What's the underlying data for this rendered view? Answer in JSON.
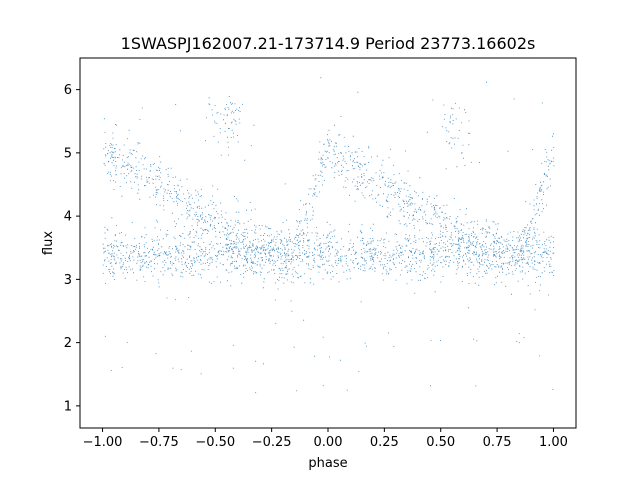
{
  "chart_data": {
    "type": "scatter",
    "title": "1SWASPJ162007.21-173714.9 Period 23773.16602s",
    "xlabel": "phase",
    "ylabel": "flux",
    "xlim": [
      -1.1,
      1.1
    ],
    "ylim": [
      0.65,
      6.5
    ],
    "xticks": [
      -1.0,
      -0.75,
      -0.5,
      -0.25,
      0.0,
      0.25,
      0.5,
      0.75,
      1.0
    ],
    "xtick_labels": [
      "−1.00",
      "−0.75",
      "−0.50",
      "−0.25",
      "0.00",
      "0.25",
      "0.50",
      "0.75",
      "1.00"
    ],
    "yticks": [
      1,
      2,
      3,
      4,
      5,
      6
    ],
    "ytick_labels": [
      "1",
      "2",
      "3",
      "4",
      "5",
      "6"
    ],
    "grid": false,
    "legend": "none",
    "series": [
      {
        "color": "#1f77b4",
        "marker_size": "tiny",
        "description_of_structure": "folded light curve, phase range -1 to 1",
        "flat_band": {
          "x": [
            -1.0,
            1.0
          ],
          "y_center": 3.4,
          "y_spread": 0.25
        },
        "sawtooth_band": [
          {
            "x": -1.0,
            "y": 5.0
          },
          {
            "x": -0.75,
            "y": 4.5
          },
          {
            "x": -0.5,
            "y": 3.9
          },
          {
            "x": -0.3,
            "y": 3.5
          },
          {
            "x": -0.15,
            "y": 3.4
          },
          {
            "x": -0.05,
            "y": 4.5
          },
          {
            "x": 0.0,
            "y": 5.0
          },
          {
            "x": 0.25,
            "y": 4.5
          },
          {
            "x": 0.5,
            "y": 3.9
          },
          {
            "x": 0.7,
            "y": 3.5
          },
          {
            "x": 0.85,
            "y": 3.4
          },
          {
            "x": 0.95,
            "y": 4.5
          },
          {
            "x": 1.0,
            "y": 5.0
          }
        ],
        "cluster_points": [
          {
            "x": -0.45,
            "y": 5.8
          },
          {
            "x": 0.55,
            "y": 5.8
          }
        ],
        "outlier_y_range": [
          1.0,
          6.2
        ],
        "approx_point_count": 42000
      }
    ]
  }
}
